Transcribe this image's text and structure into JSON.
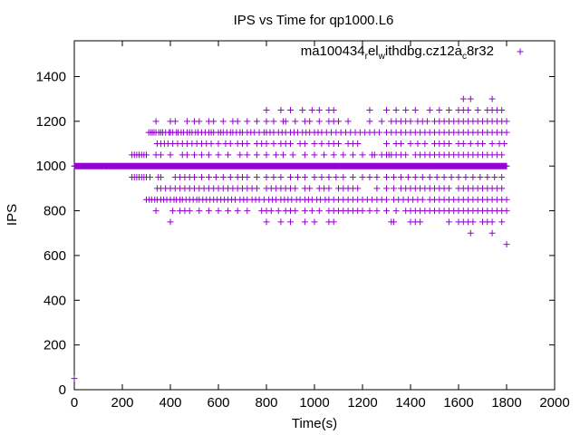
{
  "chart_data": {
    "type": "scatter",
    "title": "IPS vs Time for qp1000.L6",
    "xlabel": "Time(s)",
    "ylabel": "IPS",
    "xlim": [
      0,
      2000
    ],
    "ylim": [
      0,
      1560
    ],
    "xticks": [
      0,
      200,
      400,
      600,
      800,
      1000,
      1200,
      1400,
      1600,
      1800,
      2000
    ],
    "yticks": [
      0,
      200,
      400,
      600,
      800,
      1000,
      1200,
      1400
    ],
    "grid": false,
    "legend_position": "top-right",
    "color": "#9400d3",
    "series": [
      {
        "name_parts": [
          {
            "text": "ma100434",
            "sub": false
          },
          {
            "text": "r",
            "sub": true
          },
          {
            "text": "el",
            "sub": false
          },
          {
            "text": "w",
            "sub": true
          },
          {
            "text": "ithdbg.cz12a",
            "sub": false
          },
          {
            "text": "c",
            "sub": true
          },
          {
            "text": "8r32",
            "sub": false
          }
        ],
        "levels": [
          {
            "y": 50,
            "x": [
              0
            ]
          },
          {
            "y": 1000,
            "x_range": [
              0,
              1800,
              3
            ]
          },
          {
            "y": 1300,
            "x": [
              1620,
              1650,
              1740
            ]
          },
          {
            "y": 1250,
            "x": [
              800,
              860,
              900,
              950,
              990,
              1020,
              1060,
              1080,
              1230,
              1300,
              1340,
              1380,
              1420,
              1480,
              1520,
              1560,
              1600,
              1620,
              1640,
              1680,
              1720,
              1740,
              1760,
              1780
            ]
          },
          {
            "y": 1200,
            "x": [
              340,
              400,
              420,
              470,
              500,
              520,
              560,
              580,
              620,
              660,
              680,
              720,
              760,
              800,
              830,
              870,
              880,
              920,
              960,
              980,
              1020,
              1060,
              1080,
              1100,
              1140,
              1230,
              1280,
              1320,
              1340,
              1360,
              1380,
              1400,
              1430,
              1450,
              1470,
              1500,
              1520,
              1540,
              1560,
              1580,
              1600,
              1620,
              1640,
              1660,
              1680,
              1700,
              1720,
              1740,
              1760,
              1780,
              1800
            ]
          },
          {
            "y": 1150,
            "x": [
              310,
              318,
              325,
              332,
              340,
              352,
              360,
              368,
              380,
              395,
              400,
              410,
              425,
              432,
              445,
              455,
              470,
              480,
              490,
              505,
              515,
              530,
              545,
              560,
              570,
              580,
              600,
              610,
              620,
              635,
              650,
              660,
              675,
              690,
              700,
              720,
              735,
              750,
              770,
              790,
              800,
              815,
              830,
              850,
              865,
              880,
              900,
              915,
              930,
              950,
              965,
              980,
              1000,
              1015,
              1030,
              1050,
              1070,
              1090,
              1110,
              1130,
              1150,
              1170,
              1190,
              1210,
              1230,
              1250,
              1270,
              1300,
              1320,
              1340,
              1360,
              1380,
              1400,
              1420,
              1440,
              1460,
              1480,
              1500,
              1520,
              1540,
              1560,
              1580,
              1600,
              1620,
              1640,
              1660,
              1680,
              1700,
              1720,
              1740,
              1760,
              1780,
              1800
            ]
          },
          {
            "y": 1100,
            "x": [
              345,
              360,
              375,
              390,
              410,
              430,
              450,
              470,
              490,
              510,
              530,
              550,
              570,
              600,
              630,
              650,
              680,
              700,
              720,
              760,
              780,
              800,
              830,
              860,
              880,
              900,
              940,
              960,
              1000,
              1030,
              1060,
              1080,
              1100,
              1140,
              1160,
              1180,
              1300,
              1340,
              1360,
              1400,
              1430,
              1460,
              1500,
              1520,
              1540,
              1560,
              1600,
              1620,
              1650,
              1680,
              1700,
              1740,
              1770,
              1790
            ]
          },
          {
            "y": 1050,
            "x": [
              240,
              250,
              260,
              270,
              280,
              290,
              300,
              340,
              360,
              400,
              450,
              470,
              500,
              530,
              560,
              600,
              640,
              690,
              720,
              760,
              800,
              840,
              870,
              910,
              960,
              1000,
              1040,
              1080,
              1120,
              1160,
              1200,
              1240,
              1250,
              1280,
              1300,
              1310,
              1320,
              1340,
              1360,
              1380,
              1420,
              1440,
              1460,
              1480,
              1500,
              1520,
              1540,
              1560,
              1580,
              1600,
              1620,
              1640,
              1660,
              1680,
              1700,
              1720,
              1740,
              1760,
              1780
            ]
          },
          {
            "y": 950,
            "x": [
              240,
              250,
              260,
              270,
              280,
              290,
              300,
              315,
              350,
              360,
              420,
              440,
              460,
              480,
              500,
              530,
              560,
              590,
              620,
              650,
              680,
              700,
              720,
              760,
              800,
              830,
              860,
              900,
              930,
              960,
              1000,
              1030,
              1060,
              1090,
              1120,
              1160,
              1200,
              1230,
              1260,
              1300,
              1330,
              1360,
              1390,
              1420,
              1450,
              1480,
              1510,
              1540,
              1570,
              1600,
              1630,
              1660,
              1690,
              1720,
              1750,
              1780
            ]
          },
          {
            "y": 900,
            "x": [
              345,
              360,
              380,
              400,
              420,
              440,
              460,
              480,
              500,
              520,
              540,
              560,
              580,
              600,
              620,
              640,
              660,
              680,
              700,
              720,
              740,
              760,
              800,
              820,
              840,
              860,
              880,
              900,
              920,
              960,
              980,
              1020,
              1040,
              1060,
              1100,
              1120,
              1140,
              1160,
              1180,
              1260,
              1300,
              1330,
              1360,
              1380,
              1400,
              1420,
              1440,
              1460,
              1480,
              1500,
              1520,
              1540,
              1560,
              1600,
              1620,
              1640,
              1660,
              1680,
              1700,
              1720,
              1740,
              1760,
              1780
            ]
          },
          {
            "y": 850,
            "x": [
              300,
              312,
              322,
              335,
              345,
              360,
              372,
              385,
              400,
              415,
              425,
              440,
              450,
              465,
              480,
              495,
              510,
              520,
              535,
              550,
              565,
              580,
              595,
              610,
              625,
              640,
              655,
              670,
              690,
              705,
              720,
              740,
              755,
              770,
              790,
              810,
              825,
              840,
              860,
              875,
              890,
              905,
              925,
              940,
              960,
              975,
              990,
              1010,
              1025,
              1045,
              1060,
              1080,
              1100,
              1120,
              1140,
              1160,
              1180,
              1200,
              1220,
              1240,
              1260,
              1280,
              1300,
              1330,
              1350,
              1370,
              1390,
              1410,
              1430,
              1450,
              1480,
              1500,
              1520,
              1540,
              1560,
              1580,
              1600,
              1620,
              1640,
              1660,
              1680,
              1700,
              1720,
              1740,
              1760,
              1780,
              1800
            ]
          },
          {
            "y": 800,
            "x": [
              340,
              410,
              440,
              460,
              480,
              520,
              560,
              600,
              640,
              680,
              720,
              780,
              800,
              820,
              850,
              880,
              900,
              920,
              960,
              990,
              1020,
              1060,
              1080,
              1100,
              1120,
              1140,
              1160,
              1180,
              1200,
              1230,
              1260,
              1300,
              1340,
              1380,
              1400,
              1420,
              1440,
              1460,
              1480,
              1500,
              1520,
              1540,
              1560,
              1580,
              1600,
              1620,
              1640,
              1660,
              1680,
              1700,
              1720,
              1740,
              1760,
              1780,
              1800
            ]
          },
          {
            "y": 750,
            "x": [
              400,
              800,
              860,
              900,
              960,
              1000,
              1060,
              1080,
              1320,
              1330,
              1400,
              1420,
              1440,
              1560,
              1600,
              1620,
              1640,
              1660,
              1700,
              1720,
              1740,
              1780
            ]
          },
          {
            "y": 700,
            "x": [
              1650,
              1740
            ]
          },
          {
            "y": 650,
            "x": [
              1800
            ]
          }
        ]
      }
    ]
  }
}
